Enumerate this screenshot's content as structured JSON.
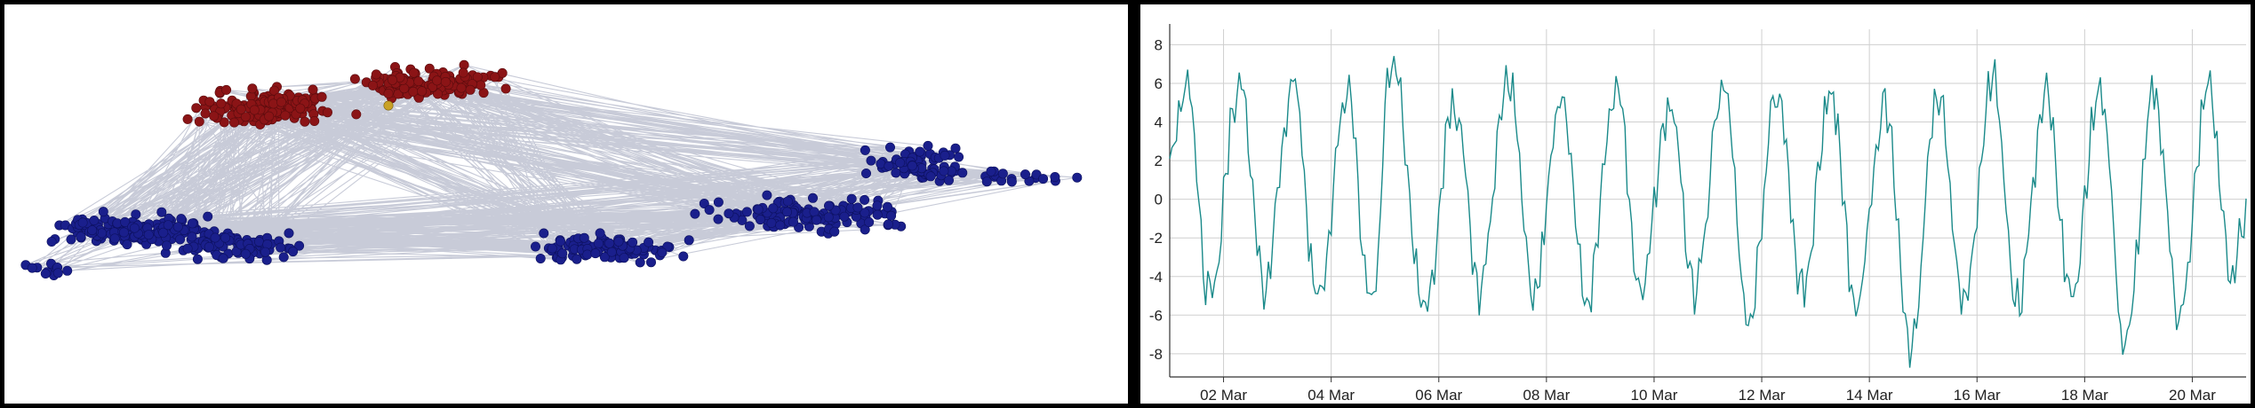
{
  "colors": {
    "edge": "#9aa0b8",
    "cluster_blue": "#1a1f8c",
    "cluster_red": "#8b1416",
    "highlight_node": "#c9a227",
    "line": "#1a8a8a",
    "grid": "#cfcfcf",
    "axis": "#333333"
  },
  "chart_data": [
    {
      "type": "network",
      "node_groups": [
        {
          "color": "#8b1416",
          "approx_count": 300
        },
        {
          "color": "#1a1f8c",
          "approx_count": 550
        }
      ]
    },
    {
      "type": "line",
      "xlabel": "",
      "ylabel": "",
      "x_range": [
        "2024-03-01T00:00",
        "2024-03-21T00:00"
      ],
      "ylim": [
        -9.2,
        8.8
      ],
      "yticks": [
        -8,
        -6,
        -4,
        -2,
        0,
        2,
        4,
        6,
        8
      ],
      "xticks": [
        "02 Mar",
        "04 Mar",
        "06 Mar",
        "08 Mar",
        "10 Mar",
        "12 Mar",
        "14 Mar",
        "16 Mar",
        "18 Mar",
        "20 Mar"
      ],
      "grid": true,
      "series": [
        {
          "color": "#1a8a8a",
          "period_hours": 24,
          "peaks": [
            {
              "t": "2024-03-01T07:00",
              "y": 6.0
            },
            {
              "t": "2024-03-02T07:00",
              "y": 6.0
            },
            {
              "t": "2024-03-03T07:00",
              "y": 6.0
            },
            {
              "t": "2024-03-04T07:00",
              "y": 5.4
            },
            {
              "t": "2024-03-05T03:00",
              "y": 7.2
            },
            {
              "t": "2024-03-06T07:00",
              "y": 4.8
            },
            {
              "t": "2024-03-07T07:00",
              "y": 6.2
            },
            {
              "t": "2024-03-08T07:00",
              "y": 5.5
            },
            {
              "t": "2024-03-09T07:00",
              "y": 6.0
            },
            {
              "t": "2024-03-10T07:00",
              "y": 5.0
            },
            {
              "t": "2024-03-11T07:00",
              "y": 5.6
            },
            {
              "t": "2024-03-12T07:00",
              "y": 5.6
            },
            {
              "t": "2024-03-13T07:00",
              "y": 5.5
            },
            {
              "t": "2024-03-14T07:00",
              "y": 4.8
            },
            {
              "t": "2024-03-15T07:00",
              "y": 5.6
            },
            {
              "t": "2024-03-16T07:00",
              "y": 6.0
            },
            {
              "t": "2024-03-17T07:00",
              "y": 5.3
            },
            {
              "t": "2024-03-18T07:00",
              "y": 5.6
            },
            {
              "t": "2024-03-19T07:00",
              "y": 5.6
            },
            {
              "t": "2024-03-20T07:00",
              "y": 5.6
            }
          ],
          "troughs": [
            {
              "t": "2024-03-01T18:00",
              "y": -5.2
            },
            {
              "t": "2024-03-02T18:00",
              "y": -4.4
            },
            {
              "t": "2024-03-03T18:00",
              "y": -5.2
            },
            {
              "t": "2024-03-04T18:00",
              "y": -5.5
            },
            {
              "t": "2024-03-05T18:00",
              "y": -5.6
            },
            {
              "t": "2024-03-06T18:00",
              "y": -4.6
            },
            {
              "t": "2024-03-07T18:00",
              "y": -5.0
            },
            {
              "t": "2024-03-08T18:00",
              "y": -5.6
            },
            {
              "t": "2024-03-09T18:00",
              "y": -5.0
            },
            {
              "t": "2024-03-10T18:00",
              "y": -4.7
            },
            {
              "t": "2024-03-11T18:00",
              "y": -6.2
            },
            {
              "t": "2024-03-12T18:00",
              "y": -4.7
            },
            {
              "t": "2024-03-13T18:00",
              "y": -5.5
            },
            {
              "t": "2024-03-14T18:00",
              "y": -7.8
            },
            {
              "t": "2024-03-15T18:00",
              "y": -5.4
            },
            {
              "t": "2024-03-16T18:00",
              "y": -5.5
            },
            {
              "t": "2024-03-17T18:00",
              "y": -5.0
            },
            {
              "t": "2024-03-18T18:00",
              "y": -7.5
            },
            {
              "t": "2024-03-19T18:00",
              "y": -5.9
            },
            {
              "t": "2024-03-20T18:00",
              "y": -4.2
            }
          ]
        }
      ]
    }
  ]
}
